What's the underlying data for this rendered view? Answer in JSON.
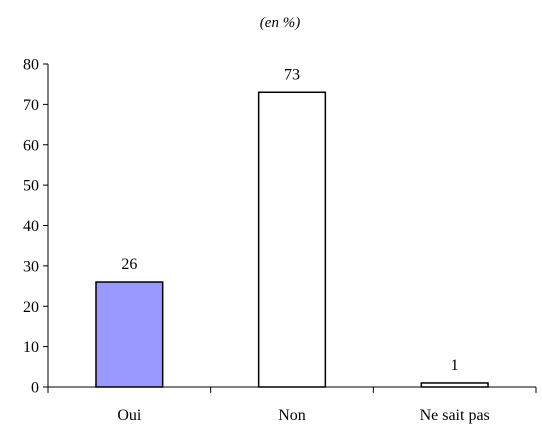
{
  "chart_data": {
    "type": "bar",
    "subtitle": "(en %)",
    "categories": [
      "Oui",
      "Non",
      "Ne sait pas"
    ],
    "values": [
      26,
      73,
      1
    ],
    "data_labels": [
      "26",
      "73",
      "1"
    ],
    "ylim": [
      0,
      80
    ],
    "yticks": [
      "0",
      "10",
      "20",
      "30",
      "40",
      "50",
      "60",
      "70",
      "80"
    ],
    "grid": false,
    "legend": "none",
    "bar_colors": [
      "#9999ff",
      "#ffffff",
      "#ffffff"
    ],
    "bar_outline": "#000000"
  }
}
